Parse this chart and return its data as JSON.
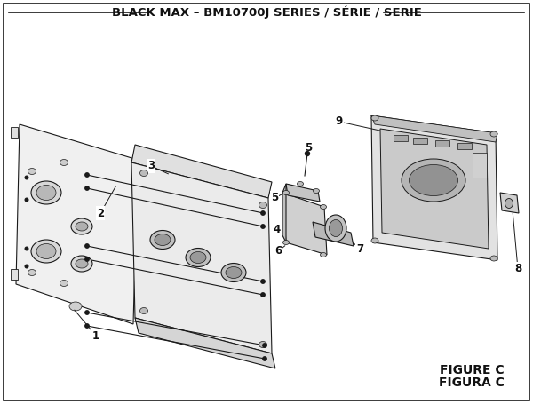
{
  "title": "BLACK MAX – BM10700J SERIES / SÉRIE / SERIE",
  "figure_label": "FIGURE C",
  "figura_label": "FIGURA C",
  "bg_color": "#ffffff",
  "line_color": "#1a1a1a",
  "text_color": "#111111",
  "title_fontsize": 9.5,
  "label_fontsize": 8.5,
  "fig_label_fontsize": 10
}
